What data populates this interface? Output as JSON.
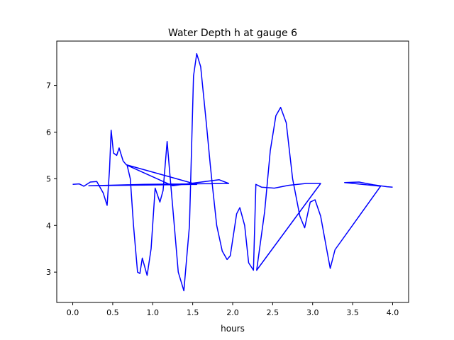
{
  "chart_data": {
    "type": "line",
    "title": "Water Depth h at gauge 6",
    "xlabel": "hours",
    "ylabel": "",
    "xlim": [
      -0.2,
      4.2
    ],
    "ylim": [
      2.35,
      7.95
    ],
    "xticks": [
      0.0,
      0.5,
      1.0,
      1.5,
      2.0,
      2.5,
      3.0,
      3.5,
      4.0
    ],
    "yticks": [
      3,
      4,
      5,
      6,
      7
    ],
    "grid": false,
    "legend": "none",
    "series": [
      {
        "color": "#0000ff",
        "points": [
          [
            0.0,
            4.88
          ],
          [
            0.08,
            4.89
          ],
          [
            0.14,
            4.84
          ],
          [
            0.22,
            4.93
          ],
          [
            0.3,
            4.94
          ],
          [
            0.38,
            4.7
          ],
          [
            0.43,
            4.43
          ],
          [
            0.46,
            5.2
          ],
          [
            0.48,
            6.04
          ],
          [
            0.51,
            5.55
          ],
          [
            0.55,
            5.5
          ],
          [
            0.58,
            5.66
          ],
          [
            0.63,
            5.38
          ],
          [
            0.67,
            5.3
          ],
          [
            1.55,
            4.88
          ],
          [
            0.67,
            5.3
          ],
          [
            1.55,
            4.88
          ],
          [
            0.2,
            4.85
          ],
          [
            0.9,
            4.88
          ],
          [
            1.95,
            4.9
          ],
          [
            1.83,
            4.98
          ],
          [
            1.25,
            4.85
          ],
          [
            0.68,
            5.29
          ],
          [
            0.72,
            5.0
          ],
          [
            0.76,
            4.0
          ],
          [
            0.81,
            3.0
          ],
          [
            0.84,
            2.97
          ],
          [
            0.87,
            3.3
          ],
          [
            0.93,
            2.93
          ],
          [
            0.98,
            3.5
          ],
          [
            1.03,
            4.8
          ],
          [
            1.09,
            4.5
          ],
          [
            1.13,
            4.75
          ],
          [
            1.18,
            5.8
          ],
          [
            1.21,
            5.2
          ],
          [
            1.27,
            4.0
          ],
          [
            1.32,
            3.0
          ],
          [
            1.39,
            2.6
          ],
          [
            1.46,
            4.0
          ],
          [
            1.51,
            7.2
          ],
          [
            1.55,
            7.68
          ],
          [
            1.6,
            7.4
          ],
          [
            1.67,
            6.2
          ],
          [
            1.72,
            5.3
          ],
          [
            1.75,
            4.8
          ],
          [
            1.8,
            4.0
          ],
          [
            1.87,
            3.45
          ],
          [
            1.93,
            3.27
          ],
          [
            1.97,
            3.35
          ],
          [
            2.05,
            4.25
          ],
          [
            2.09,
            4.38
          ],
          [
            2.15,
            4.0
          ],
          [
            2.2,
            3.2
          ],
          [
            2.26,
            3.04
          ],
          [
            2.29,
            4.88
          ],
          [
            2.36,
            4.82
          ],
          [
            2.52,
            4.8
          ],
          [
            2.7,
            4.86
          ],
          [
            2.92,
            4.9
          ],
          [
            3.1,
            4.9
          ],
          [
            2.3,
            3.04
          ],
          [
            2.4,
            4.3
          ],
          [
            2.47,
            5.6
          ],
          [
            2.54,
            6.35
          ],
          [
            2.6,
            6.53
          ],
          [
            2.67,
            6.2
          ],
          [
            2.75,
            5.0
          ],
          [
            2.84,
            4.2
          ],
          [
            2.9,
            3.95
          ],
          [
            2.97,
            4.5
          ],
          [
            3.03,
            4.55
          ],
          [
            3.1,
            4.2
          ],
          [
            3.18,
            3.45
          ],
          [
            3.22,
            3.08
          ],
          [
            3.28,
            3.48
          ],
          [
            3.85,
            4.84
          ],
          [
            3.4,
            4.92
          ],
          [
            3.58,
            4.93
          ],
          [
            3.76,
            4.87
          ],
          [
            3.93,
            4.83
          ],
          [
            4.0,
            4.82
          ]
        ]
      }
    ]
  }
}
